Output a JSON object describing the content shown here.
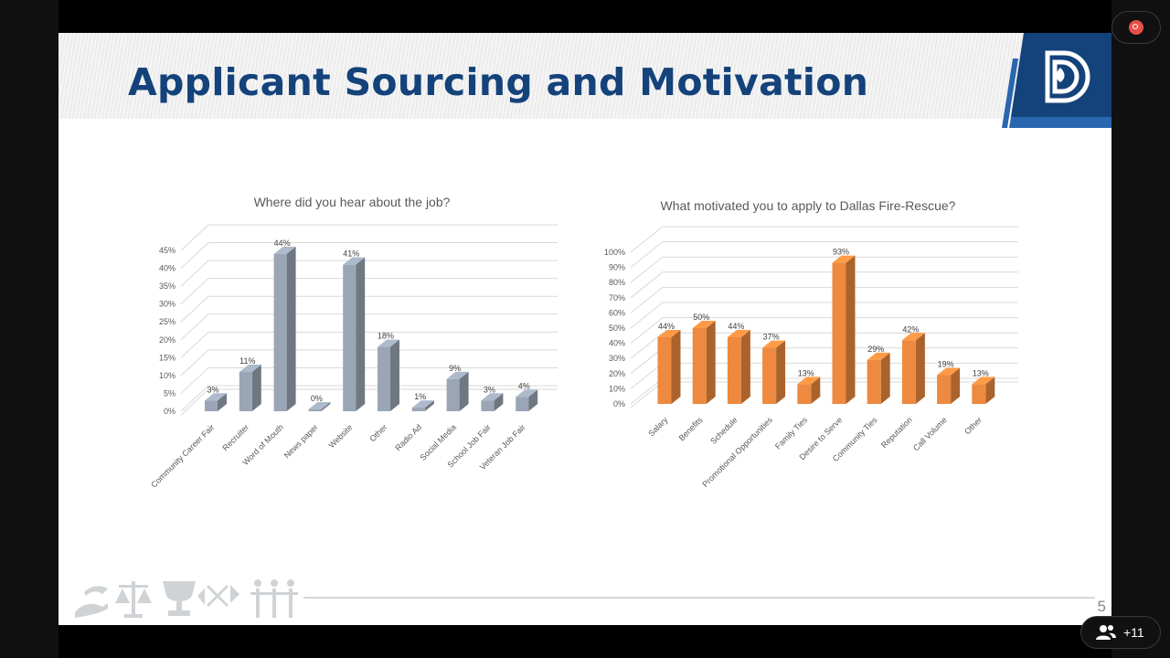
{
  "slide": {
    "title": "Applicant Sourcing and Motivation",
    "page_number": "5",
    "brand_color": "#14427a"
  },
  "meeting": {
    "participants_label": "+11",
    "record_icon": "record-icon",
    "participants_icon": "people-icon"
  },
  "chart_data": [
    {
      "type": "bar",
      "title": "Where did you hear about the job?",
      "categories": [
        "Community Career Fair",
        "Recruiter",
        "Word of Mouth",
        "News paper",
        "Website",
        "Other",
        "Radio Ad",
        "Social Media",
        "School Job Fair",
        "Veteran Job Fair"
      ],
      "values": [
        3,
        11,
        44,
        0,
        41,
        18,
        1,
        9,
        3,
        4
      ],
      "data_labels": [
        "3%",
        "11%",
        "44%",
        "0%",
        "41%",
        "18%",
        "1%",
        "9%",
        "3%",
        "4%"
      ],
      "ylim": [
        0,
        45
      ],
      "yticks": [
        "0%",
        "5%",
        "10%",
        "15%",
        "20%",
        "25%",
        "30%",
        "35%",
        "40%",
        "45%"
      ],
      "color": "#9aa6b5",
      "grid": true
    },
    {
      "type": "bar",
      "title": "What motivated you to apply to Dallas Fire-Rescue?",
      "categories": [
        "Salary",
        "Benefits",
        "Schedule",
        "Promotional Opportunities",
        "Family Ties",
        "Desire to Serve",
        "Community Ties",
        "Reputation",
        "Call Volume",
        "Other"
      ],
      "values": [
        44,
        50,
        44,
        37,
        13,
        93,
        29,
        42,
        19,
        13
      ],
      "data_labels": [
        "44%",
        "50%",
        "44%",
        "37%",
        "13%",
        "93%",
        "29%",
        "42%",
        "19%",
        "13%"
      ],
      "ylim": [
        0,
        100
      ],
      "yticks": [
        "0%",
        "10%",
        "20%",
        "30%",
        "40%",
        "50%",
        "60%",
        "70%",
        "80%",
        "90%",
        "100%"
      ],
      "color": "#ed8a3f",
      "grid": true
    }
  ]
}
